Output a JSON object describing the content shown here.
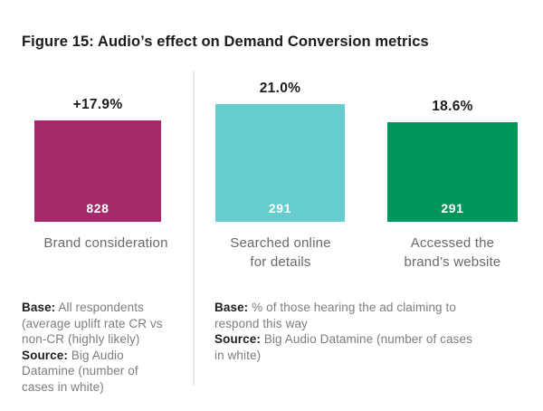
{
  "title": "Figure 15: Audio’s effect on Demand Conversion metrics",
  "colors": {
    "magenta": "#a62a69",
    "teal": "#67cccd",
    "green": "#009659",
    "divider": "#ebebeb",
    "text_dark": "#1b1b1b",
    "text_gray": "#7b7e80"
  },
  "bars": [
    {
      "pct": "+17.9%",
      "count": "828",
      "label_line1": "Brand consideration",
      "label_line2": "",
      "color": "#a62a69"
    },
    {
      "pct": "21.0%",
      "count": "291",
      "label_line1": "Searched online",
      "label_line2": "for details",
      "color": "#67cccd"
    },
    {
      "pct": "18.6%",
      "count": "291",
      "label_line1": "Accessed the",
      "label_line2": "brand’s website",
      "color": "#009659"
    }
  ],
  "footnotes": {
    "left": {
      "line1_bold": "Base:",
      "line1_rest": " All respondents",
      "line2": "(average uplift rate CR vs",
      "line3": "non-CR (highly likely)",
      "line4_bold": "Source:",
      "line4_rest": " Big Audio",
      "line5": "Datamine (number of",
      "line6": "cases in white)"
    },
    "right": {
      "line1_bold": "Base:",
      "line1_rest": " % of those hearing the ad claiming to",
      "line2": "respond this way",
      "line3_bold": "Source:",
      "line3_rest": " Big Audio Datamine (number of cases",
      "line4": "in white)"
    }
  },
  "chart_data": {
    "type": "bar",
    "title": "Figure 15: Audio’s effect on Demand Conversion metrics",
    "grid": false,
    "legend": false,
    "unit": "%",
    "panels": [
      {
        "categories": [
          "Brand consideration"
        ],
        "values": [
          17.9
        ],
        "value_labels": [
          "+17.9%"
        ],
        "cases_in_white": [
          828
        ],
        "colors": [
          "#a62a69"
        ],
        "base": "All respondents (average uplift rate CR vs non-CR (highly likely)",
        "source": "Big Audio Datamine (number of cases in white)"
      },
      {
        "categories": [
          "Searched online for details",
          "Accessed the brand’s website"
        ],
        "values": [
          21.0,
          18.6
        ],
        "value_labels": [
          "21.0%",
          "18.6%"
        ],
        "cases_in_white": [
          291,
          291
        ],
        "colors": [
          "#67cccd",
          "#009659"
        ],
        "base": "% of those hearing the ad claiming to respond this way",
        "source": "Big Audio Datamine (number of cases in white)"
      }
    ]
  }
}
